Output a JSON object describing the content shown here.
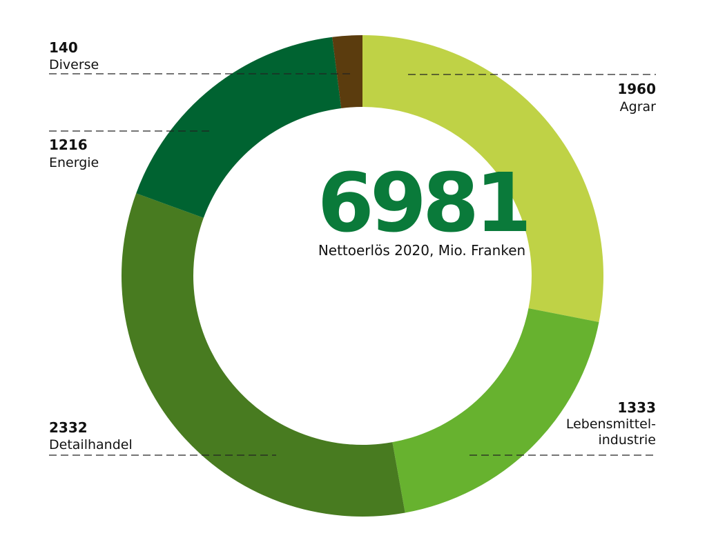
{
  "chart_data": {
    "type": "pie",
    "donut": true,
    "total": {
      "value": "6981",
      "label": "Nettoerlös 2020, Mio. Franken",
      "color": "#0a7a3a"
    },
    "segments": [
      {
        "name": "Agrar",
        "name_lines": [
          "Agrar"
        ],
        "value": 1960,
        "value_label": "1960",
        "color": "#bfd246"
      },
      {
        "name": "Lebensmittelindustrie",
        "name_lines": [
          "Lebensmittel-",
          "industrie"
        ],
        "value": 1333,
        "value_label": "1333",
        "color": "#67b22f"
      },
      {
        "name": "Detailhandel",
        "name_lines": [
          "Detailhandel"
        ],
        "value": 2332,
        "value_label": "2332",
        "color": "#487b20"
      },
      {
        "name": "Energie",
        "name_lines": [
          "Energie"
        ],
        "value": 1216,
        "value_label": "1216",
        "color": "#006331"
      },
      {
        "name": "Diverse",
        "name_lines": [
          "Diverse"
        ],
        "value": 140,
        "value_label": "140",
        "color": "#5b3c0e"
      }
    ],
    "legend": "none",
    "grid": false
  }
}
